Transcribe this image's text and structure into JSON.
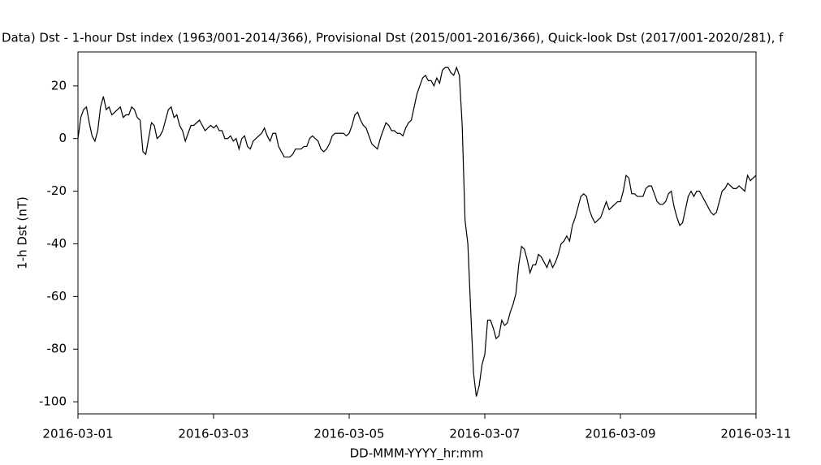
{
  "chart_data": {
    "type": "line",
    "title": "Data)  Dst - 1-hour Dst index (1963/001-2014/366), Provisional Dst (2015/001-2016/366), Quick-look Dst (2017/001-2020/281), f",
    "x_label": "DD-MMM-YYYY_hr:mm",
    "y_label": "1-h Dst (nT)",
    "color": "#000000",
    "xlim": [
      "2016-03-01",
      "2016-03-11"
    ],
    "xticks": [
      "2016-03-01",
      "2016-03-03",
      "2016-03-05",
      "2016-03-07",
      "2016-03-09",
      "2016-03-11"
    ],
    "ylim": [
      -104.6,
      32.9
    ],
    "yticks": [
      -100,
      -80,
      -60,
      -40,
      -20,
      0,
      20
    ],
    "values": [
      0,
      8,
      11,
      12,
      6,
      1,
      -1,
      3,
      12,
      16,
      11,
      12,
      9,
      10,
      11,
      12,
      8,
      9,
      9,
      12,
      11,
      8,
      7,
      -5,
      -6,
      0,
      6,
      5,
      0,
      1,
      3,
      7,
      11,
      12,
      8,
      9,
      5,
      3,
      -1,
      2,
      5,
      5,
      6,
      7,
      5,
      3,
      4,
      5,
      4,
      5,
      3,
      3,
      0,
      0,
      1,
      -1,
      0,
      -4,
      0,
      1,
      -3,
      -4,
      -1,
      0,
      1,
      2,
      4,
      1,
      -1,
      2,
      2,
      -3,
      -5,
      -7,
      -7,
      -7,
      -6,
      -4,
      -4,
      -4,
      -3,
      -3,
      0,
      1,
      0,
      -1,
      -4,
      -5,
      -4,
      -2,
      1,
      2,
      2,
      2,
      2,
      1,
      2,
      5,
      9,
      10,
      7,
      5,
      4,
      1,
      -2,
      -3,
      -4,
      0,
      3,
      6,
      5,
      3,
      3,
      2,
      2,
      1,
      4,
      6,
      7,
      12,
      17,
      20,
      23,
      24,
      22,
      22,
      20,
      23,
      21,
      26,
      27,
      27,
      25,
      24,
      27,
      24,
      5,
      -31,
      -40,
      -65,
      -89,
      -98,
      -94,
      -86,
      -82,
      -69,
      -69,
      -72,
      -76,
      -75,
      -69,
      -71,
      -70,
      -66,
      -63,
      -59,
      -48,
      -41,
      -42,
      -46,
      -51,
      -48,
      -48,
      -44,
      -45,
      -47,
      -49,
      -46,
      -49,
      -47,
      -44,
      -40,
      -39,
      -37,
      -39,
      -33,
      -30,
      -26,
      -22,
      -21,
      -22,
      -27,
      -30,
      -32,
      -31,
      -30,
      -27,
      -24,
      -27,
      -26,
      -25,
      -24,
      -24,
      -20,
      -14,
      -15,
      -21,
      -21,
      -22,
      -22,
      -22,
      -19,
      -18,
      -18,
      -21,
      -24,
      -25,
      -25,
      -24,
      -21,
      -20,
      -26,
      -30,
      -33,
      -32,
      -27,
      -22,
      -20,
      -22,
      -20,
      -20,
      -22,
      -24,
      -26,
      -28,
      -29,
      -28,
      -24,
      -20,
      -19,
      -17,
      -18,
      -19,
      -19,
      -18,
      -19,
      -20,
      -14,
      -16,
      -15,
      -14
    ]
  }
}
